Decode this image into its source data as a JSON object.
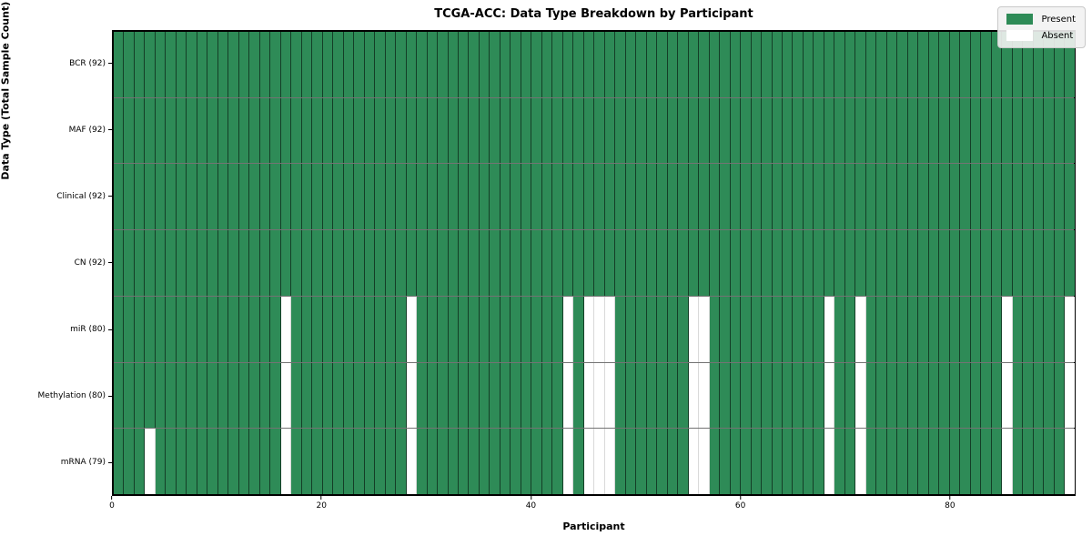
{
  "title": "TCGA-ACC: Data Type Breakdown by Participant",
  "chart_data": {
    "type": "heatmap",
    "title": "TCGA-ACC: Data Type Breakdown by Participant",
    "xlabel": "Participant",
    "ylabel": "Data Type (Total Sample Count)",
    "n_participants": 92,
    "x_ticks": [
      0,
      20,
      40,
      60,
      80
    ],
    "x_range": [
      0,
      92
    ],
    "grid": false,
    "colors": {
      "present": "#2e8b57",
      "absent": "#ffffff"
    },
    "legend": {
      "position": "upper right",
      "entries": [
        {
          "label": "Present",
          "value": "present",
          "color": "#2e8b57"
        },
        {
          "label": "Absent",
          "value": "absent",
          "color": "#ffffff"
        }
      ]
    },
    "rows": [
      {
        "label": "BCR (92)",
        "data_type": "BCR",
        "present_count": 92,
        "absent_participants": []
      },
      {
        "label": "MAF (92)",
        "data_type": "MAF",
        "present_count": 92,
        "absent_participants": []
      },
      {
        "label": "Clinical (92)",
        "data_type": "Clinical",
        "present_count": 92,
        "absent_participants": []
      },
      {
        "label": "CN (92)",
        "data_type": "CN",
        "present_count": 92,
        "absent_participants": []
      },
      {
        "label": "miR (80)",
        "data_type": "miR",
        "present_count": 80,
        "absent_participants": [
          16,
          28,
          43,
          45,
          46,
          47,
          55,
          56,
          68,
          71,
          85,
          91
        ]
      },
      {
        "label": "Methylation (80)",
        "data_type": "Methylation",
        "present_count": 80,
        "absent_participants": [
          16,
          28,
          43,
          45,
          46,
          47,
          55,
          56,
          68,
          71,
          85,
          91
        ]
      },
      {
        "label": "mRNA (79)",
        "data_type": "mRNA",
        "present_count": 79,
        "absent_participants": [
          3,
          16,
          28,
          43,
          45,
          46,
          47,
          55,
          56,
          68,
          71,
          85,
          91
        ]
      }
    ]
  }
}
